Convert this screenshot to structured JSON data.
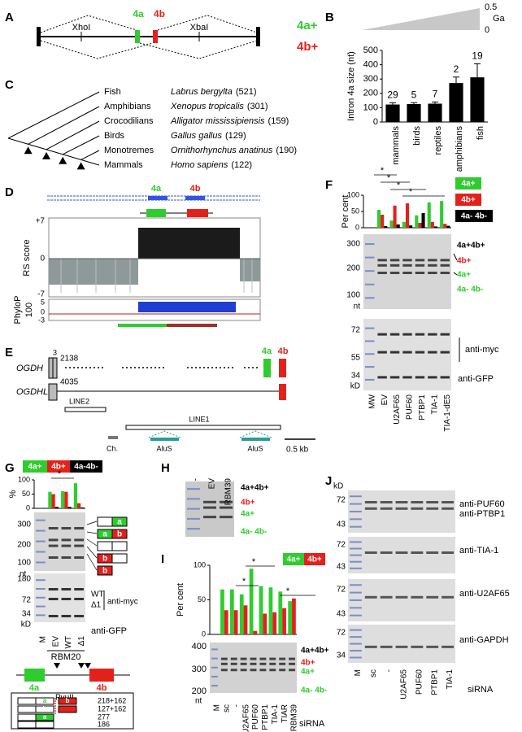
{
  "panel_labels": [
    "A",
    "B",
    "C",
    "D",
    "E",
    "F",
    "G",
    "H",
    "I",
    "J"
  ],
  "A": {
    "exon_a": "4a",
    "exon_b": "4b",
    "site_left": "XhoI",
    "site_right": "XbaI",
    "isoforms": [
      "4a+",
      "4b+"
    ]
  },
  "B": {
    "time_max": "0.5",
    "time_unit": "Ga",
    "time_min": "0"
  },
  "C": {
    "clades": [
      {
        "group": "Fish",
        "species": "Labrus bergylta",
        "intron": "(521)"
      },
      {
        "group": "Amphibians",
        "species": "Xenopus tropicalis",
        "intron": "(301)"
      },
      {
        "group": "Crocodilians",
        "species": "Alligator mississipiensis",
        "intron": "(159)"
      },
      {
        "group": "Birds",
        "species": "Gallus gallus",
        "intron": "(129)"
      },
      {
        "group": "Monotremes",
        "species": "Ornithorhynchus anatinus",
        "intron": "(190)"
      },
      {
        "group": "Mammals",
        "species": "Homo sapiens",
        "intron": "(122)"
      }
    ]
  },
  "D": {
    "exon_a": "4a",
    "exon_b": "4b",
    "rs_label": "RS score",
    "rs_ticks": [
      "+7",
      "0",
      "-7"
    ],
    "phylop_label": [
      "PhyloP",
      "100"
    ],
    "phylop_ticks": [
      "5",
      "0",
      "-3"
    ]
  },
  "E": {
    "genes": [
      "OGDH",
      "OGDHL"
    ],
    "exon_number": "3",
    "ogdh_length": "2138",
    "ogdhl_length": "4035",
    "exon_a": "4a",
    "exon_b": "4b",
    "repeats": [
      "LINE2",
      "LINE1",
      "Ch.",
      "AluS",
      "AluS"
    ],
    "scale": "0.5 kb"
  },
  "F": {
    "gel_ticks": [
      "300",
      "200",
      "100"
    ],
    "gel_unit": "nt",
    "products": [
      "4a+4b+",
      "4b+",
      "4a+",
      "4a- 4b-"
    ],
    "blot_ticks": [
      "72",
      "55",
      "34"
    ],
    "blot_unit": "kD",
    "antibodies": [
      "anti-myc",
      "anti-GFP"
    ],
    "lanes": [
      "MW",
      "EV",
      "U2AF65",
      "PUF60",
      "PTBP1",
      "TIA-1",
      "TIA-1-dE5"
    ]
  },
  "G": {
    "gel_ticks": [
      "300",
      "200",
      "100"
    ],
    "gel_unit": "nt",
    "schematic_letters": [
      "a",
      "a",
      "b",
      "b",
      "b"
    ],
    "blot_ticks": [
      "180",
      "72",
      "34"
    ],
    "blot_unit": "kD",
    "forms": [
      "WT",
      "Δ1"
    ],
    "antibodies": [
      "anti-myc",
      "anti-GFP"
    ],
    "lanes": [
      "M",
      "EV",
      "WT",
      "Δ1"
    ],
    "construct": "RBM20",
    "exon_a": "4a",
    "exon_b": "4b",
    "pvuii": {
      "enzyme": "PvuII",
      "letters": [
        "a",
        "b",
        "b",
        "a"
      ],
      "sizes": [
        "218+162",
        "127+162",
        "277",
        "186"
      ]
    }
  },
  "H": {
    "lanes": [
      "-",
      "EV",
      "RBM39"
    ],
    "products": [
      "4a+4b+",
      "4b+",
      "4a+",
      "4a- 4b-"
    ]
  },
  "I": {
    "gel_ticks": [
      "400",
      "300",
      "200"
    ],
    "gel_unit": "nt",
    "products": [
      "4a+4b+",
      "4b+",
      "4a+",
      "4a- 4b-"
    ],
    "lanes": [
      "M",
      "sc",
      "-",
      "U2AF65",
      "PUF60",
      "PTBP1",
      "TIA-1",
      "TIAR",
      "RBM39"
    ],
    "treatment": "siRNA"
  },
  "J": {
    "unit": "kD",
    "blots": [
      {
        "ticks": [
          "72",
          "43"
        ],
        "antibodies": [
          "anti-PUF60",
          "anti-PTBP1"
        ]
      },
      {
        "ticks": [
          "72",
          "43"
        ],
        "antibodies": [
          "anti-TIA-1"
        ]
      },
      {
        "ticks": [
          "72",
          "43"
        ],
        "antibodies": [
          "anti-U2AF65"
        ]
      },
      {
        "ticks": [
          "72",
          "34"
        ],
        "antibodies": [
          "anti-GAPDH"
        ]
      }
    ],
    "lanes": [
      "M",
      "sc",
      "-",
      "U2AF65",
      "PUF60",
      "PTBP1",
      "TIA-1"
    ],
    "treatment": "siRNA"
  },
  "chart_data": [
    {
      "type": "bar",
      "y_label": "Intron 4a size (nt)",
      "categories": [
        "mammals",
        "birds",
        "reptiles",
        "amphibians",
        "fish"
      ],
      "values": [
        122,
        125,
        128,
        272,
        312
      ],
      "errors": [
        12,
        10,
        12,
        42,
        95
      ],
      "counts": [
        29,
        5,
        7,
        2,
        19
      ],
      "color": "#000000",
      "ylim": [
        0,
        500
      ],
      "yticks": [
        0,
        100,
        200,
        300,
        400,
        500
      ]
    },
    {
      "type": "grouped_bar",
      "y_label": "Per cent",
      "ylim": [
        0,
        100
      ],
      "yticks": [
        0,
        50,
        100
      ],
      "significance": [
        "*",
        "*",
        "*",
        "*"
      ],
      "series": [
        {
          "name": "4a+",
          "color": "#2fcc2f",
          "values": [
            55,
            22,
            18,
            38,
            78,
            82
          ]
        },
        {
          "name": "4b+",
          "color": "#e3211c",
          "values": [
            40,
            68,
            75,
            15,
            18,
            12
          ]
        },
        {
          "name": "4a- 4b-",
          "color": "#000000",
          "values": [
            5,
            10,
            7,
            45,
            4,
            6
          ]
        }
      ]
    },
    {
      "type": "grouped_bar",
      "y_label": "%",
      "ylim": [
        0,
        100
      ],
      "yticks": [
        0,
        50,
        100
      ],
      "significance": [
        "*"
      ],
      "series": [
        {
          "name": "4a+",
          "color": "#2fcc2f",
          "values": [
            58,
            60,
            88
          ]
        },
        {
          "name": "4b+",
          "color": "#e3211c",
          "values": [
            50,
            58,
            18
          ]
        },
        {
          "name": "4a-4b-",
          "color": "#000000",
          "values": [
            5,
            5,
            3
          ]
        }
      ]
    },
    {
      "type": "grouped_bar",
      "y_label": "Per cent",
      "ylim": [
        0,
        100
      ],
      "yticks": [
        0,
        50,
        100
      ],
      "significance": [
        "*",
        "*",
        "*"
      ],
      "series": [
        {
          "name": "4a+",
          "color": "#2fcc2f",
          "values": [
            65,
            65,
            58,
            95,
            70,
            68,
            62,
            48
          ]
        },
        {
          "name": "4b+",
          "color": "#e3211c",
          "values": [
            35,
            35,
            42,
            5,
            30,
            32,
            38,
            52
          ]
        }
      ]
    }
  ]
}
